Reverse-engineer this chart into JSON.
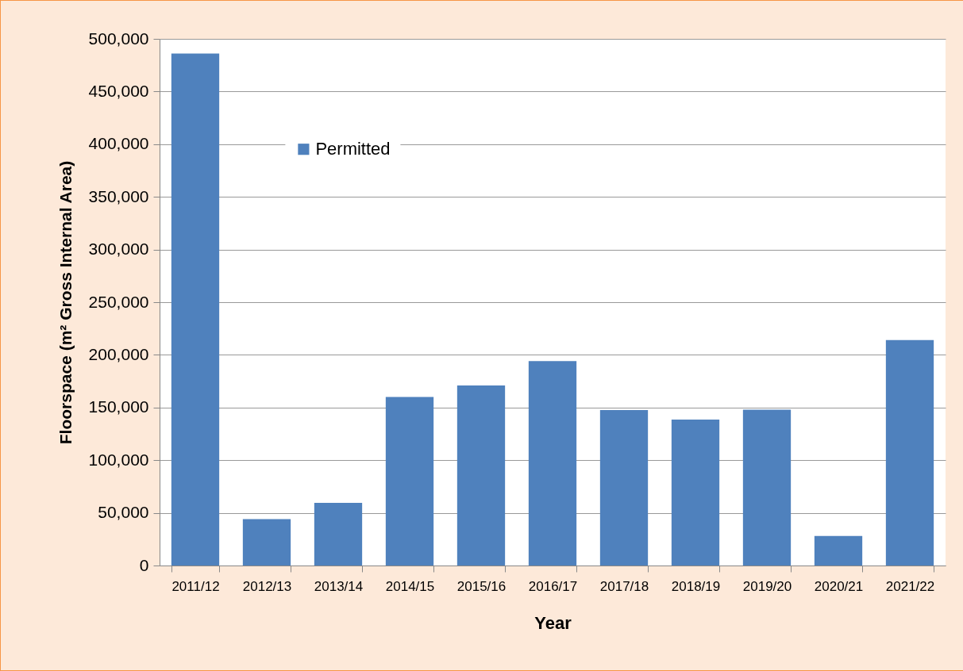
{
  "chart_data": {
    "type": "bar",
    "xlabel": "Year",
    "ylabel": "Floorspace (m² Gross Internal Area)",
    "categories": [
      "2011/12",
      "2012/13",
      "2013/14",
      "2014/15",
      "2015/16",
      "2016/17",
      "2017/18",
      "2018/19",
      "2019/20",
      "2020/21",
      "2021/22"
    ],
    "series": [
      {
        "name": "Permitted",
        "color": "#4f81bd",
        "values": [
          486000,
          44000,
          59500,
          160000,
          171000,
          194000,
          147500,
          138500,
          148000,
          28000,
          214000
        ]
      }
    ],
    "ylim": [
      0,
      500000
    ],
    "yticks": [
      0,
      {
        "value": 50000,
        "label": "50,000"
      },
      {
        "value": 100000,
        "label": "100,000"
      },
      {
        "value": 150000,
        "label": "150,000"
      },
      {
        "value": 200000,
        "label": "200,000"
      },
      {
        "value": 250000,
        "label": "250,000"
      },
      {
        "value": 300000,
        "label": "300,000"
      },
      {
        "value": 350000,
        "label": "350,000"
      },
      {
        "value": 400000,
        "label": "400,000"
      },
      {
        "value": 450000,
        "label": "450,000"
      },
      {
        "value": 500000,
        "label": "500,000"
      }
    ],
    "grid": "y",
    "legend": "top"
  }
}
